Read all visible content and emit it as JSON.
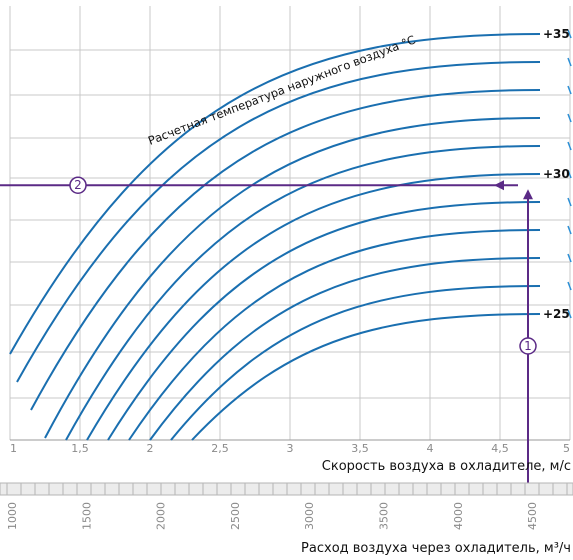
{
  "chart_data": {
    "type": "line",
    "title": "",
    "annotation": "Расчетная температура наружного воздуха °С",
    "xlabel": "Скорость воздуха в охладителе, м/с",
    "xlabel2": "Расход воздуха через охладитель, м³/ч",
    "xlim": [
      1,
      5
    ],
    "x_ticks": [
      "1",
      "1,5",
      "2",
      "2,5",
      "3",
      "3,5",
      "4",
      "4,5",
      "5"
    ],
    "x2_ticks": [
      "1000",
      "1500",
      "2000",
      "2500",
      "3000",
      "3500",
      "4000",
      "4500"
    ],
    "ylim": [
      20.5,
      36
    ],
    "curve_labels": [
      "+35",
      "+30",
      "+25"
    ],
    "series": [
      {
        "x0": 1.0,
        "y": [
          35.0
        ]
      },
      {
        "x0": 1.05,
        "y": [
          34.0
        ]
      },
      {
        "x0": 1.15,
        "y": [
          33.0
        ]
      },
      {
        "x0": 1.25,
        "y": [
          32.0
        ]
      },
      {
        "x0": 1.4,
        "y": [
          31.0
        ]
      },
      {
        "x0": 1.55,
        "y": [
          30.0
        ]
      },
      {
        "x0": 1.7,
        "y": [
          29.0
        ]
      },
      {
        "x0": 1.85,
        "y": [
          28.0
        ]
      },
      {
        "x0": 2.0,
        "y": [
          27.0
        ]
      },
      {
        "x0": 2.15,
        "y": [
          26.0
        ]
      },
      {
        "x0": 2.3,
        "y": [
          25.0
        ]
      }
    ],
    "example": {
      "marker1": "1",
      "marker2": "2",
      "x": 4.7,
      "y": 29.6
    },
    "colors": {
      "curve": "#1a6fb0",
      "example": "#5b2a86",
      "grid": "#c9c9c9",
      "tick_mark": "#2a8fd6"
    }
  }
}
